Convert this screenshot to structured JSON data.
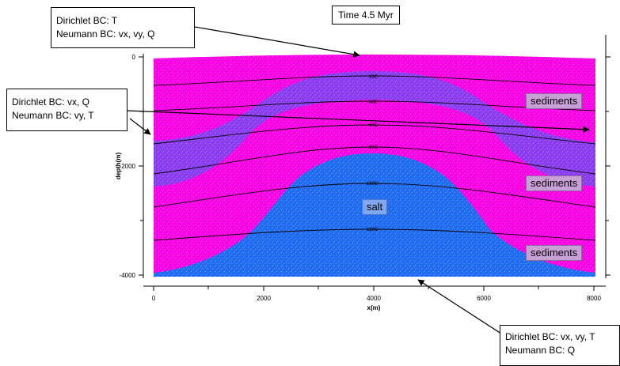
{
  "time_label": "Time 4.5 Myr",
  "callouts": {
    "top": {
      "line1": "Dirichlet BC: T",
      "line2": "Neumann BC: vx, vy, Q"
    },
    "left": {
      "line1": "Dirichlet BC: vx, Q",
      "line2": "Neumann BC: vy, T"
    },
    "bottom": {
      "line1": "Dirichlet BC: vx, vy, T",
      "line2": "Neumann BC: Q"
    }
  },
  "region_labels": {
    "sediments_upper": "sediments",
    "sediments_middle": "sediments",
    "salt": "salt",
    "sediments_lower": "sediments"
  },
  "axes": {
    "xlabel": "x(m)",
    "ylabel": "depth(m)",
    "x_ticks": [
      "0",
      "2000",
      "4000",
      "6000",
      "8000"
    ],
    "y_ticks": [
      "0",
      "-2000",
      "-4000"
    ],
    "x_range": [
      0,
      8000
    ],
    "y_range": [
      -4000,
      0
    ]
  },
  "contours": [
    {
      "label": "20C",
      "temperature_c": 20
    },
    {
      "label": "40C",
      "temperature_c": 40
    },
    {
      "label": "60C",
      "temperature_c": 60
    },
    {
      "label": "80C",
      "temperature_c": 80
    },
    {
      "label": "100C",
      "temperature_c": 100
    },
    {
      "label": "120C",
      "temperature_c": 120
    }
  ],
  "colors": {
    "sediment_pink": "#ff00e6",
    "sediment_purple": "#8a3cf5",
    "salt_blue": "#1e6bf5",
    "contour": "#000000"
  }
}
